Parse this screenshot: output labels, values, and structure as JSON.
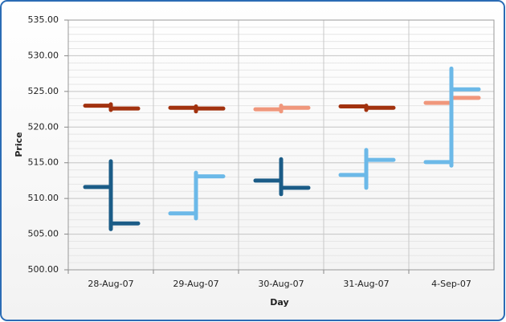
{
  "chart_data": {
    "type": "ohlc",
    "x_label": "Day",
    "y_label": "Price",
    "categories": [
      "28-Aug-07",
      "29-Aug-07",
      "30-Aug-07",
      "31-Aug-07",
      "4-Sep-07"
    ],
    "series": [
      {
        "up_color": "#f0977c",
        "down_color": "#a2320f",
        "open": [
          523.0,
          522.7,
          522.5,
          522.9,
          523.4
        ],
        "high": [
          523.2,
          522.9,
          523.0,
          523.0,
          524.2
        ],
        "low": [
          522.4,
          522.2,
          522.2,
          522.4,
          523.2
        ],
        "close": [
          522.6,
          522.6,
          522.7,
          522.7,
          524.1
        ]
      },
      {
        "up_color": "#6cb9e8",
        "down_color": "#1b5c87",
        "open": [
          511.6,
          507.9,
          512.5,
          513.3,
          515.1
        ],
        "high": [
          515.2,
          513.6,
          515.5,
          516.8,
          528.2
        ],
        "low": [
          505.7,
          507.2,
          510.6,
          511.5,
          514.6
        ],
        "close": [
          506.5,
          513.1,
          511.5,
          515.4,
          525.3
        ]
      }
    ],
    "ylim": [
      500,
      535
    ],
    "yticks": [
      {
        "value": 500,
        "label": "500.00"
      },
      {
        "value": 505,
        "label": "505.00"
      },
      {
        "value": 510,
        "label": "510.00"
      },
      {
        "value": 515,
        "label": "515.00"
      },
      {
        "value": 520,
        "label": "520.00"
      },
      {
        "value": 525,
        "label": "525.00"
      },
      {
        "value": 530,
        "label": "530.00"
      },
      {
        "value": 535,
        "label": "535.00"
      }
    ],
    "grid": true,
    "minor_step": 1
  }
}
